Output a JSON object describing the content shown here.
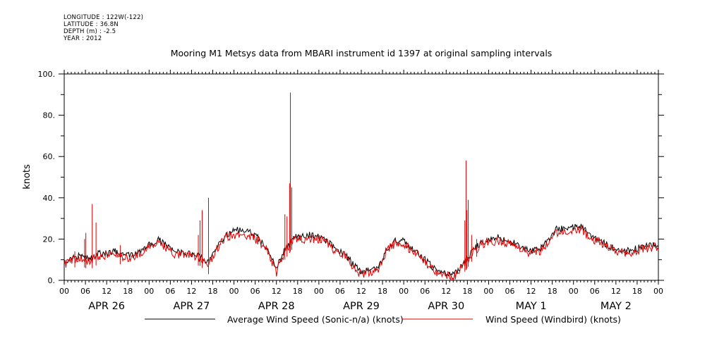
{
  "header": {
    "longitude": "LONGITUDE : 122W(-122)",
    "latitude": "LATITUDE : 36.8N",
    "depth": "DEPTH (m) : -2.5",
    "year": "YEAR : 2012"
  },
  "chart_data": {
    "type": "line",
    "title": "Mooring M1 Metsys data from MBARI instrument id 1397 at original sampling intervals",
    "ylabel": "knots",
    "xlabel": "",
    "ylim": [
      0,
      100
    ],
    "y_ticks": [
      "0.",
      "20.",
      "40.",
      "60.",
      "80.",
      "100."
    ],
    "hour_ticks": [
      "00",
      "06",
      "12",
      "18",
      "00",
      "06",
      "12",
      "18",
      "00",
      "06",
      "12",
      "18",
      "00",
      "06",
      "12",
      "18",
      "00",
      "06",
      "12",
      "18",
      "00",
      "06",
      "12",
      "18",
      "00",
      "06",
      "12",
      "18",
      "00"
    ],
    "day_labels": [
      "APR 26",
      "APR 27",
      "APR 28",
      "APR 29",
      "APR 30",
      "MAY  1",
      "MAY  2"
    ],
    "xlim_days": [
      0,
      7
    ],
    "series": [
      {
        "name": "Average Wind Speed (Sonic-n/a) (knots)",
        "color": "#000000",
        "x": [
          0,
          0.1,
          0.2,
          0.3,
          0.4,
          0.5,
          0.6,
          0.7,
          0.8,
          0.9,
          1.0,
          1.1,
          1.2,
          1.3,
          1.4,
          1.5,
          1.6,
          1.7,
          1.8,
          1.9,
          2.0,
          2.1,
          2.2,
          2.3,
          2.4,
          2.5,
          2.6,
          2.7,
          2.8,
          2.9,
          3.0,
          3.1,
          3.2,
          3.3,
          3.4,
          3.5,
          3.6,
          3.7,
          3.8,
          3.9,
          4.0,
          4.1,
          4.2,
          4.3,
          4.4,
          4.5,
          4.6,
          4.7,
          4.8,
          4.9,
          5.0,
          5.1,
          5.2,
          5.3,
          5.4,
          5.5,
          5.6,
          5.7,
          5.8,
          5.9,
          6.0,
          6.1,
          6.2,
          6.3,
          6.4,
          6.5,
          6.6,
          6.7,
          6.8,
          6.9,
          7.0
        ],
        "y": [
          9,
          11,
          12,
          10,
          13,
          13,
          14,
          12,
          12,
          14,
          17,
          20,
          17,
          14,
          13,
          13,
          12,
          8,
          16,
          22,
          24,
          25,
          23,
          20,
          15,
          6,
          15,
          21,
          21,
          22,
          21,
          19,
          15,
          13,
          8,
          4,
          5,
          6,
          15,
          19,
          19,
          15,
          12,
          8,
          4,
          3,
          3,
          8,
          14,
          18,
          20,
          21,
          19,
          18,
          16,
          14,
          15,
          19,
          25,
          25,
          26,
          26,
          22,
          20,
          17,
          15,
          14,
          15,
          16,
          17,
          17
        ]
      },
      {
        "name": "Wind Speed (Windbird) (knots)",
        "color": "#dd0000",
        "x": [
          0,
          0.1,
          0.2,
          0.3,
          0.4,
          0.5,
          0.6,
          0.7,
          0.8,
          0.9,
          1.0,
          1.1,
          1.2,
          1.3,
          1.4,
          1.5,
          1.6,
          1.7,
          1.8,
          1.9,
          2.0,
          2.1,
          2.2,
          2.3,
          2.4,
          2.5,
          2.6,
          2.7,
          2.8,
          2.9,
          3.0,
          3.1,
          3.2,
          3.3,
          3.4,
          3.5,
          3.6,
          3.7,
          3.8,
          3.9,
          4.0,
          4.1,
          4.2,
          4.3,
          4.4,
          4.5,
          4.6,
          4.7,
          4.8,
          4.9,
          5.0,
          5.1,
          5.2,
          5.3,
          5.4,
          5.5,
          5.6,
          5.7,
          5.8,
          5.9,
          6.0,
          6.1,
          6.2,
          6.3,
          6.4,
          6.5,
          6.6,
          6.7,
          6.8,
          6.9,
          7.0
        ],
        "y": [
          8,
          10,
          11,
          9,
          12,
          12,
          13,
          11,
          11,
          13,
          16,
          19,
          16,
          13,
          12,
          12,
          11,
          7,
          15,
          21,
          22,
          23,
          21,
          19,
          14,
          4,
          14,
          20,
          20,
          20,
          20,
          18,
          14,
          12,
          6,
          3,
          4,
          5,
          14,
          18,
          18,
          14,
          11,
          7,
          3,
          2,
          2,
          7,
          13,
          17,
          19,
          19,
          18,
          17,
          15,
          13,
          14,
          18,
          23,
          24,
          24,
          24,
          20,
          19,
          16,
          14,
          13,
          14,
          15,
          16,
          16
        ],
        "spikes": [
          {
            "x": 0.125,
            "y": 14
          },
          {
            "x": 0.24,
            "y": 20
          },
          {
            "x": 0.255,
            "y": 23
          },
          {
            "x": 0.33,
            "y": 37
          },
          {
            "x": 0.375,
            "y": 28
          },
          {
            "x": 0.66,
            "y": 17
          },
          {
            "x": 1.58,
            "y": 22
          },
          {
            "x": 1.6,
            "y": 29
          },
          {
            "x": 1.625,
            "y": 34
          },
          {
            "x": 1.7,
            "y": 40
          },
          {
            "x": 2.6,
            "y": 32
          },
          {
            "x": 2.625,
            "y": 31
          },
          {
            "x": 2.655,
            "y": 47
          },
          {
            "x": 2.665,
            "y": 91
          },
          {
            "x": 2.68,
            "y": 45
          },
          {
            "x": 4.72,
            "y": 29
          },
          {
            "x": 4.735,
            "y": 58
          },
          {
            "x": 4.745,
            "y": 34
          },
          {
            "x": 4.76,
            "y": 39
          },
          {
            "x": 4.8,
            "y": 22
          },
          {
            "x": 4.86,
            "y": 20
          }
        ]
      }
    ],
    "legend": "bottom"
  }
}
